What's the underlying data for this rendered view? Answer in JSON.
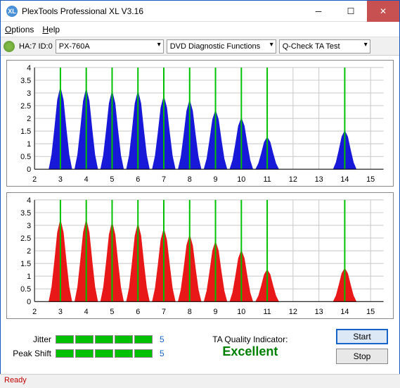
{
  "window": {
    "title": "PlexTools Professional XL V3.16",
    "icon_text": "XL"
  },
  "menu": {
    "options": "Options",
    "help": "Help"
  },
  "toolbar": {
    "device_label": "HA:7 ID:0",
    "device_model": "PX-760A",
    "func_select": "DVD Diagnostic Functions",
    "test_select": "Q-Check TA Test"
  },
  "charts": {
    "x_min": 2,
    "x_max": 15.5,
    "x_ticks": [
      2,
      3,
      4,
      5,
      6,
      7,
      8,
      9,
      10,
      11,
      12,
      13,
      14,
      15
    ],
    "y_min": 0,
    "y_max": 4,
    "y_ticks": [
      0,
      0.5,
      1,
      1.5,
      2,
      2.5,
      3,
      3.5,
      4
    ],
    "grid_color": "#c8c8c8",
    "axis_color": "#000000",
    "marker_color": "#00c000",
    "marker_x": [
      3,
      4,
      5,
      6,
      7,
      8,
      9,
      10,
      11,
      14
    ],
    "top": {
      "fill": "#1818d8",
      "peaks": [
        {
          "x": 3,
          "h": 3.2
        },
        {
          "x": 4,
          "h": 3.15
        },
        {
          "x": 5,
          "h": 3.05
        },
        {
          "x": 6,
          "h": 3.05
        },
        {
          "x": 7,
          "h": 2.85
        },
        {
          "x": 8,
          "h": 2.7
        },
        {
          "x": 9,
          "h": 2.3
        },
        {
          "x": 10,
          "h": 2.0
        },
        {
          "x": 11,
          "h": 1.25
        },
        {
          "x": 14,
          "h": 1.5
        }
      ]
    },
    "bottom": {
      "fill": "#e81818",
      "peaks": [
        {
          "x": 3,
          "h": 3.2
        },
        {
          "x": 4,
          "h": 3.2
        },
        {
          "x": 5,
          "h": 3.1
        },
        {
          "x": 6,
          "h": 3.05
        },
        {
          "x": 7,
          "h": 2.85
        },
        {
          "x": 8,
          "h": 2.6
        },
        {
          "x": 9,
          "h": 2.35
        },
        {
          "x": 10,
          "h": 2.0
        },
        {
          "x": 11,
          "h": 1.25
        },
        {
          "x": 14,
          "h": 1.3
        }
      ]
    }
  },
  "metrics": {
    "jitter_label": "Jitter",
    "jitter_value": "5",
    "jitter_segments": 5,
    "peakshift_label": "Peak Shift",
    "peakshift_value": "5",
    "peakshift_segments": 5,
    "segment_color": "#00c000"
  },
  "quality": {
    "label": "TA Quality Indicator:",
    "value": "Excellent",
    "color": "#008000"
  },
  "buttons": {
    "start": "Start",
    "stop": "Stop"
  },
  "status": {
    "text": "Ready"
  }
}
